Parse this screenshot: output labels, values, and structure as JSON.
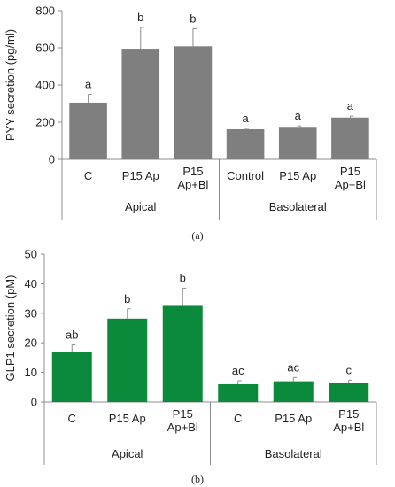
{
  "colors": {
    "panel_a_bar": "#7f7f7f",
    "panel_b_bar": "#0a8a3a",
    "axis": "#8c8c8c",
    "text": "#222222"
  },
  "panel_a": {
    "caption": "(a)",
    "group_labels": [
      "Apical",
      "Basolateral"
    ]
  },
  "panel_b": {
    "caption": "(b)",
    "group_labels": [
      "Apical",
      "Basolateral"
    ]
  },
  "chart_data": [
    {
      "type": "bar",
      "ylabel": "PYY secretion (pg/ml)",
      "ylim": [
        0,
        800
      ],
      "yticks": [
        0,
        200,
        400,
        600,
        800
      ],
      "categories": [
        "C",
        "P15 Ap",
        "P15 Ap+Bl",
        "Control",
        "P15 Ap",
        "P15 Ap+Bl"
      ],
      "groups": [
        {
          "name": "Apical",
          "count": 3
        },
        {
          "name": "Basolateral",
          "count": 3
        }
      ],
      "values": [
        305,
        595,
        608,
        162,
        175,
        225
      ],
      "errors": [
        45,
        115,
        95,
        5,
        5,
        8
      ],
      "letters": [
        "a",
        "b",
        "b",
        "a",
        "a",
        "a"
      ],
      "grid": false
    },
    {
      "type": "bar",
      "ylabel": "GLP1 secretion (pM)",
      "ylim": [
        0,
        50
      ],
      "yticks": [
        0,
        10,
        20,
        30,
        40,
        50
      ],
      "categories": [
        "C",
        "P15 Ap",
        "P15 Ap+Bl",
        "C",
        "P15 Ap",
        "P15 Ap+Bl"
      ],
      "groups": [
        {
          "name": "Apical",
          "count": 3
        },
        {
          "name": "Basolateral",
          "count": 3
        }
      ],
      "values": [
        17,
        28.2,
        32.5,
        6,
        7,
        6.5
      ],
      "errors": [
        2.3,
        3.3,
        6,
        1.2,
        1.3,
        0.9
      ],
      "letters": [
        "ab",
        "b",
        "b",
        "ac",
        "ac",
        "c"
      ],
      "grid": false
    }
  ]
}
